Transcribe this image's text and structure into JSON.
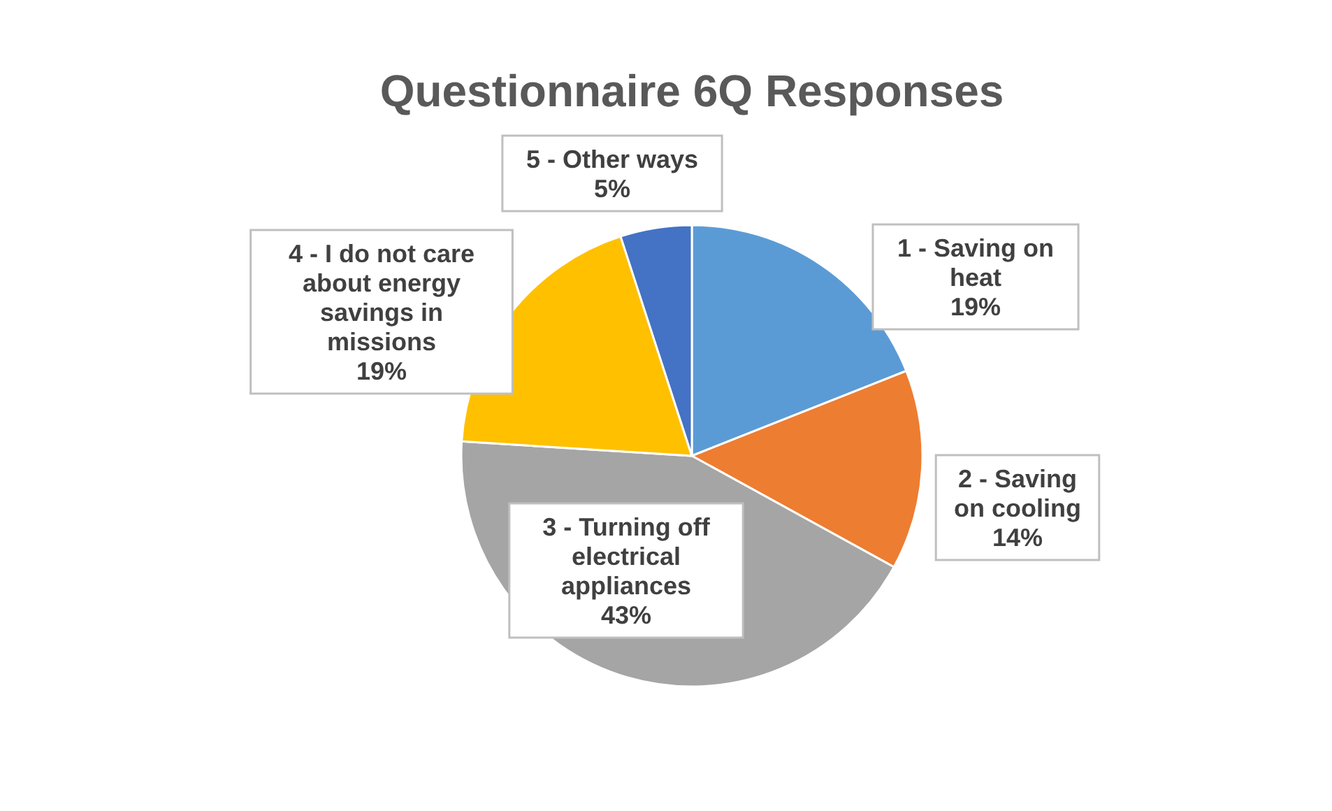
{
  "chart_data": {
    "type": "pie",
    "title": "Questionnaire 6Q Responses",
    "categories": [
      "1 - Saving on heat",
      "2 - Saving on cooling",
      "3 - Turning off electrical appliances",
      "4 - I do not care about energy savings in missions",
      "5 - Other ways"
    ],
    "values": [
      19,
      14,
      43,
      19,
      5
    ],
    "value_labels": [
      "19%",
      "14%",
      "43%",
      "19%",
      "5%"
    ],
    "colors": [
      "#5b9bd5",
      "#ed7d31",
      "#a5a5a5",
      "#ffc000",
      "#4472c4"
    ]
  }
}
